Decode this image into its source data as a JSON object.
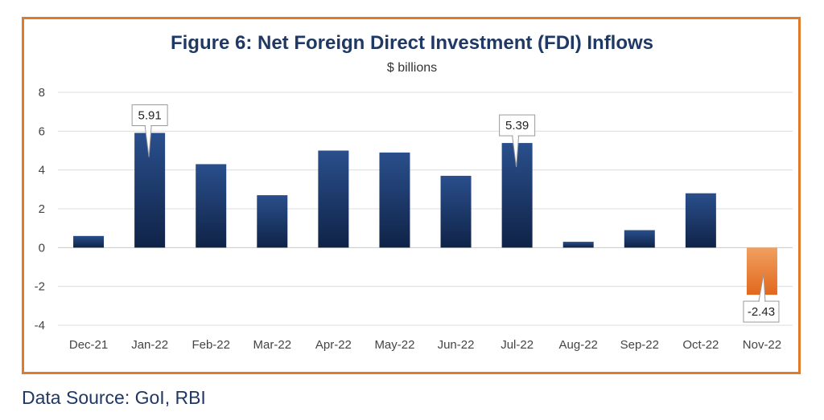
{
  "source_text": "Data Source: GoI, RBI",
  "colors": {
    "bar": "#1b3a6b",
    "negative": "#e87c2f",
    "frame": "#e07a2b",
    "title": "#1f3864"
  },
  "chart_data": {
    "type": "bar",
    "title": "Figure 6: Net Foreign Direct Investment (FDI) Inflows",
    "subtitle": "$ billions",
    "categories": [
      "Dec-21",
      "Jan-22",
      "Feb-22",
      "Mar-22",
      "Apr-22",
      "May-22",
      "Jun-22",
      "Jul-22",
      "Aug-22",
      "Sep-22",
      "Oct-22",
      "Nov-22"
    ],
    "values": [
      0.6,
      5.91,
      4.3,
      2.7,
      5.0,
      4.9,
      3.7,
      5.39,
      0.3,
      0.9,
      2.8,
      -2.43
    ],
    "ylim": [
      -4,
      8
    ],
    "yticks": [
      -4,
      -2,
      0,
      2,
      4,
      6,
      8
    ],
    "grid": true,
    "data_labels": [
      {
        "category": "Jan-22",
        "text": "5.91"
      },
      {
        "category": "Jul-22",
        "text": "5.39"
      },
      {
        "category": "Nov-22",
        "text": "-2.43"
      }
    ]
  }
}
